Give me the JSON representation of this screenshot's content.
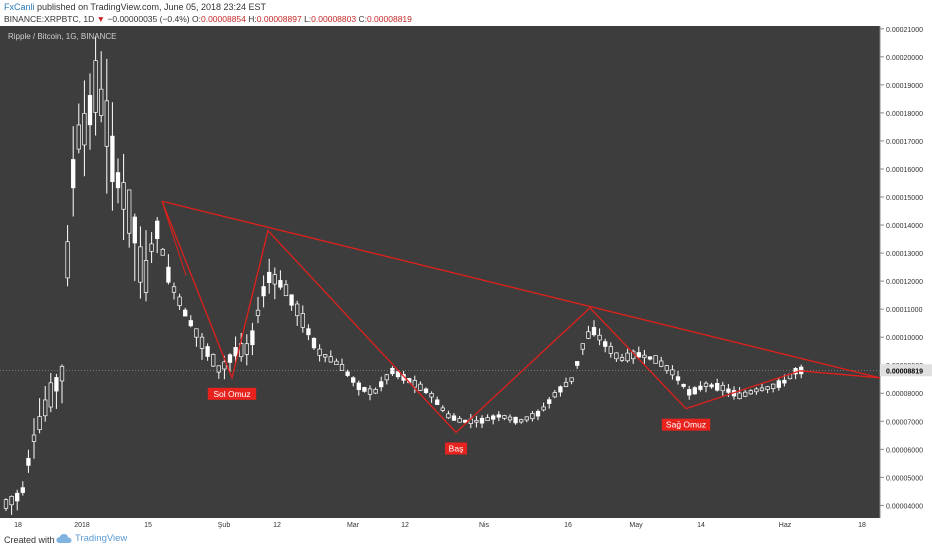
{
  "header": {
    "author": "FxCanli",
    "published_text": "published on TradingView.com, June 05, 2018 23:24 EST",
    "symbol": "BINANCE:XRPBTC, 1D",
    "change_arrow": "▼",
    "change": "−0.00000035 (−0.4%)",
    "o_label": "O:",
    "o_value": "0.00008854",
    "h_label": "H:",
    "h_value": "0.00008897",
    "l_label": "L:",
    "l_value": "0.00008803",
    "c_label": "C:",
    "c_value": "0.00008819"
  },
  "chart_data": {
    "type": "candlestick",
    "legend": "Ripple / Bitcoin, 1G, BINANCE",
    "x_ticks": [
      "18",
      "2018",
      "15",
      "Şub",
      "12",
      "Mar",
      "12",
      "Nis",
      "16",
      "May",
      "14",
      "Haz",
      "18"
    ],
    "y_ticks": [
      "0.00021000",
      "0.00020000",
      "0.00019000",
      "0.00018000",
      "0.00017000",
      "0.00016000",
      "0.00015000",
      "0.00014000",
      "0.00013000",
      "0.00012000",
      "0.00011000",
      "0.00010000",
      "0.00009000",
      "0.00008000",
      "0.00007000",
      "0.00006000",
      "0.00005000",
      "0.00004000"
    ],
    "ylim": [
      3.55e-05,
      0.000211
    ],
    "last_price": "0.00008819",
    "last_price_value": 8.819e-05,
    "annotations": [
      "Sol Omuz",
      "Baş",
      "Sağ Omuz"
    ],
    "pattern": {
      "trendline_start": 0.0001485,
      "trendline_end": 8.55e-05,
      "points": [
        {
          "label": "Sol Omuz",
          "value": 8.55e-05
        },
        {
          "label": "Baş",
          "value": 6.6e-05
        },
        {
          "label": "Sağ Omuz",
          "value": 7.45e-05
        }
      ]
    },
    "colors": {
      "background": "#3d3d3d",
      "candle_up": "#ffffff",
      "candle_down": "#ffffff",
      "pattern_line": "#e0201c",
      "label_bg": "#e8221d",
      "axis_text": "#333333"
    }
  },
  "footer": {
    "created_with": "Created with",
    "brand": "TradingView"
  }
}
